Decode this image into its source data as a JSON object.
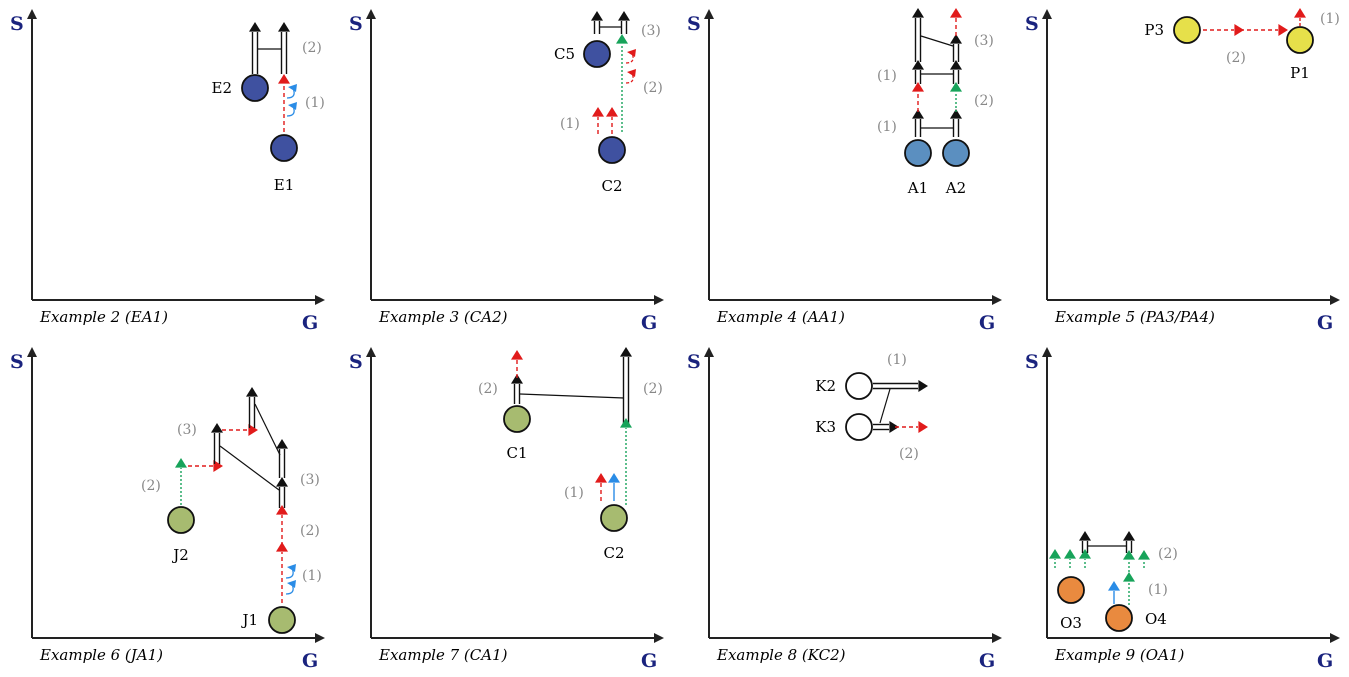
{
  "axis_labels": {
    "y": "S",
    "x": "G"
  },
  "panels": [
    {
      "caption": "Example 2 (EA1)",
      "nodes": [
        {
          "label": "E1",
          "color": "#3f51a0"
        },
        {
          "label": "E2",
          "color": "#3f51a0"
        }
      ],
      "steps": [
        "(1)",
        "(2)"
      ]
    },
    {
      "caption": "Example 3 (CA2)",
      "nodes": [
        {
          "label": "C2",
          "color": "#3f51a0"
        },
        {
          "label": "C5",
          "color": "#3f51a0"
        }
      ],
      "steps": [
        "(1)",
        "(2)",
        "(3)"
      ]
    },
    {
      "caption": "Example 4 (AA1)",
      "nodes": [
        {
          "label": "A1",
          "color": "#5b8fc0"
        },
        {
          "label": "A2",
          "color": "#5b8fc0"
        }
      ],
      "steps": [
        "(1)",
        "(1)",
        "(2)",
        "(3)"
      ]
    },
    {
      "caption": "Example 5 (PA3/PA4)",
      "nodes": [
        {
          "label": "P3",
          "color": "#e6e04a"
        },
        {
          "label": "P1",
          "color": "#e6e04a"
        }
      ],
      "steps": [
        "(2)",
        "(1)"
      ]
    },
    {
      "caption": "Example 6 (JA1)",
      "nodes": [
        {
          "label": "J1",
          "color": "#a7bb70"
        },
        {
          "label": "J2",
          "color": "#a7bb70"
        }
      ],
      "steps": [
        "(1)",
        "(2)",
        "(2)",
        "(3)",
        "(3)"
      ]
    },
    {
      "caption": "Example 7 (CA1)",
      "nodes": [
        {
          "label": "C1",
          "color": "#a7bb70"
        },
        {
          "label": "C2",
          "color": "#a7bb70"
        }
      ],
      "steps": [
        "(2)",
        "(2)",
        "(1)"
      ]
    },
    {
      "caption": "Example 8 (KC2)",
      "nodes": [
        {
          "label": "K2",
          "color": "#ffffff"
        },
        {
          "label": "K3",
          "color": "#ffffff"
        }
      ],
      "steps": [
        "(1)",
        "(2)"
      ]
    },
    {
      "caption": "Example 9 (OA1)",
      "nodes": [
        {
          "label": "O3",
          "color": "#e98a3f"
        },
        {
          "label": "O4",
          "color": "#e98a3f"
        }
      ],
      "steps": [
        "(2)",
        "(1)"
      ]
    }
  ],
  "colors": {
    "red": "#e11b1b",
    "green": "#17a35a",
    "blue": "#2a8ce6",
    "black": "#111111",
    "axis": "#222222"
  }
}
